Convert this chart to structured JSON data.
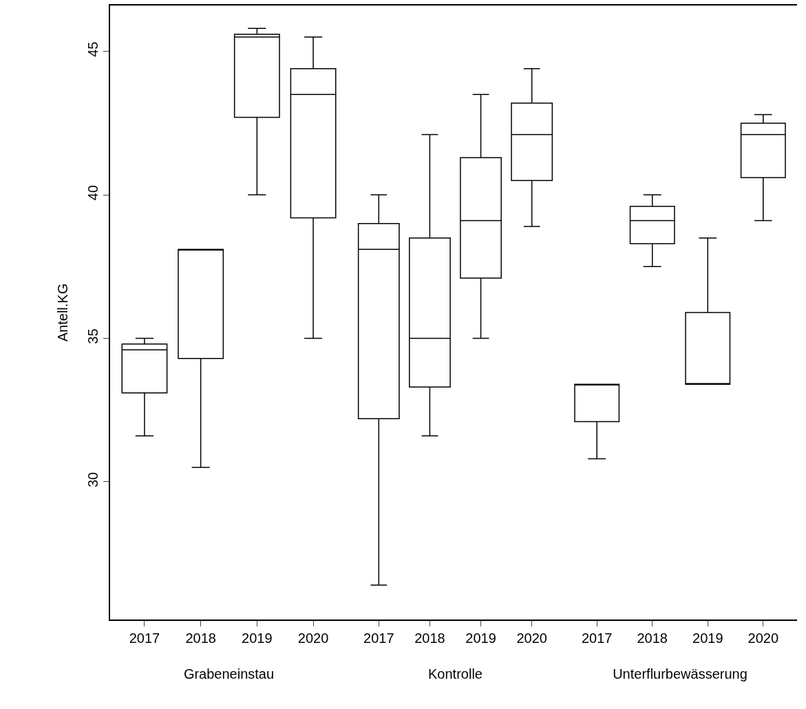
{
  "chart_data": [
    {
      "type": "box",
      "xlabel": "Grabeneinstau",
      "ylabel": "Antell.KG",
      "categories": [
        "2017",
        "2018",
        "2019",
        "2020"
      ],
      "color": "#000000",
      "ylim": [
        25.2,
        46.6
      ],
      "yticks": [
        30,
        35,
        40,
        45
      ],
      "boxes": [
        {
          "low": 31.6,
          "q1": 33.1,
          "median": 34.6,
          "q3": 34.8,
          "high": 35.0
        },
        {
          "low": 30.5,
          "q1": 34.3,
          "median": 38.1,
          "q3": 38.1,
          "high": 38.1
        },
        {
          "low": 40.0,
          "q1": 42.7,
          "median": 45.5,
          "q3": 45.6,
          "high": 45.8
        },
        {
          "low": 35.0,
          "q1": 39.2,
          "median": 43.5,
          "q3": 44.4,
          "high": 45.5
        }
      ]
    },
    {
      "type": "box",
      "xlabel": "Kontrolle",
      "categories": [
        "2017",
        "2018",
        "2019",
        "2020"
      ],
      "color": "#000000",
      "ylim": [
        25.2,
        46.6
      ],
      "tick_labels": "x",
      "boxes": [
        {
          "low": 26.4,
          "q1": 32.2,
          "median": 38.1,
          "q3": 39.0,
          "high": 40.0
        },
        {
          "low": 31.6,
          "q1": 33.3,
          "median": 35.0,
          "q3": 38.5,
          "high": 42.1
        },
        {
          "low": 35.0,
          "q1": 37.1,
          "median": 39.1,
          "q3": 41.3,
          "high": 43.5
        },
        {
          "low": 38.9,
          "q1": 40.5,
          "median": 42.1,
          "q3": 43.2,
          "high": 44.4
        }
      ]
    },
    {
      "type": "box",
      "xlabel": "Unterflurbewässerung",
      "categories": [
        "2017",
        "2018",
        "2019",
        "2020"
      ],
      "color": "#000000",
      "ylim": [
        25.2,
        46.6
      ],
      "tick_labels": "x",
      "boxes": [
        {
          "low": 30.8,
          "q1": 32.1,
          "median": 33.4,
          "q3": 33.4,
          "high": 33.4
        },
        {
          "low": 37.5,
          "q1": 38.3,
          "median": 39.1,
          "q3": 39.6,
          "high": 40.0
        },
        {
          "low": 33.4,
          "q1": 33.4,
          "median": 33.4,
          "q3": 35.9,
          "high": 38.5
        },
        {
          "low": 39.1,
          "q1": 40.6,
          "median": 42.1,
          "q3": 42.5,
          "high": 42.8
        }
      ]
    }
  ]
}
